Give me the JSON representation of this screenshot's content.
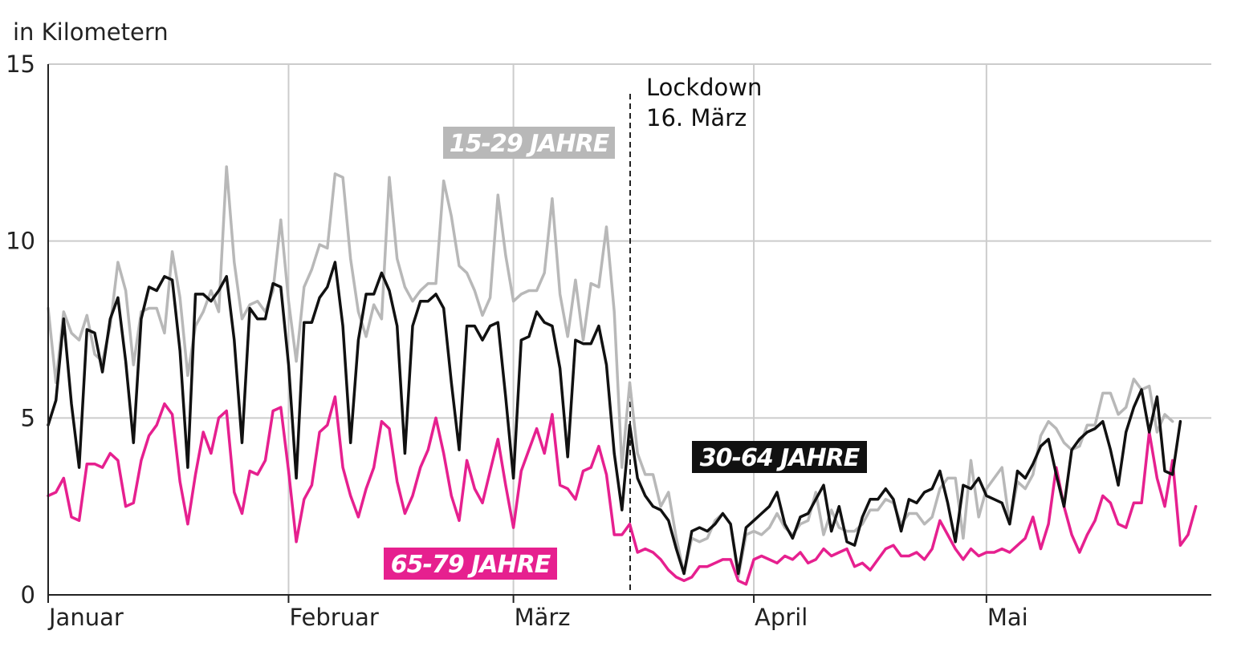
{
  "chart_data": {
    "type": "line",
    "title": "",
    "ylabel": "in Kilometern",
    "ylim": [
      0,
      15
    ],
    "yticks": [
      "0",
      "5",
      "10",
      "15"
    ],
    "x_range_days": [
      1,
      151
    ],
    "months": [
      {
        "label": "Januar",
        "day": 1
      },
      {
        "label": "Februar",
        "day": 32
      },
      {
        "label": "März",
        "day": 61
      },
      {
        "label": "April",
        "day": 92
      },
      {
        "label": "Mai",
        "day": 122
      }
    ],
    "grid": true,
    "annotation": {
      "day": 76,
      "line1": "Lockdown",
      "line2": "16. März"
    },
    "series": [
      {
        "name": "15-29 JAHRE",
        "color": "#b8b8b8",
        "values": [
          8.1,
          6.0,
          8.0,
          7.4,
          7.2,
          7.9,
          6.8,
          6.6,
          7.6,
          9.4,
          8.6,
          6.5,
          8.0,
          8.1,
          8.1,
          7.4,
          9.7,
          8.4,
          6.2,
          7.6,
          8.0,
          8.6,
          8.0,
          12.1,
          9.4,
          7.8,
          8.2,
          8.3,
          8.0,
          8.6,
          10.6,
          8.3,
          6.6,
          8.7,
          9.2,
          9.9,
          9.8,
          11.9,
          11.8,
          9.5,
          8.0,
          7.3,
          8.2,
          7.8,
          11.8,
          9.5,
          8.7,
          8.3,
          8.6,
          8.8,
          8.8,
          11.7,
          10.7,
          9.3,
          9.1,
          8.6,
          7.9,
          8.4,
          11.3,
          9.6,
          8.3,
          8.5,
          8.6,
          8.6,
          9.1,
          11.2,
          8.5,
          7.3,
          8.9,
          7.2,
          8.8,
          8.7,
          10.4,
          8.0,
          3.6,
          6.0,
          4.0,
          3.4,
          3.4,
          2.5,
          2.9,
          1.6,
          0.6,
          1.6,
          1.5,
          1.6,
          2.1,
          2.3,
          2.0,
          0.5,
          1.7,
          1.8,
          1.7,
          1.9,
          2.3,
          1.9,
          1.7,
          2.0,
          2.1,
          2.9,
          1.7,
          2.4,
          1.9,
          1.8,
          1.8,
          2.0,
          2.4,
          2.4,
          2.7,
          2.6,
          2.0,
          2.3,
          2.3,
          2.0,
          2.2,
          3.0,
          3.3,
          3.3,
          1.6,
          3.8,
          2.2,
          3.0,
          3.3,
          3.6,
          2.0,
          3.2,
          3.0,
          3.4,
          4.5,
          4.9,
          4.7,
          4.3,
          4.1,
          4.2,
          4.8,
          4.8,
          5.7,
          5.7,
          5.1,
          5.3,
          6.1,
          5.8,
          5.9,
          4.6,
          5.1,
          4.9
        ]
      },
      {
        "name": "30-64 JAHRE",
        "color": "#111111",
        "values": [
          4.8,
          5.5,
          7.8,
          5.4,
          3.6,
          7.5,
          7.4,
          6.3,
          7.8,
          8.4,
          6.6,
          4.3,
          7.8,
          8.7,
          8.6,
          9.0,
          8.9,
          6.9,
          3.6,
          8.5,
          8.5,
          8.3,
          8.6,
          9.0,
          7.2,
          4.3,
          8.1,
          7.8,
          7.8,
          8.8,
          8.7,
          6.5,
          3.3,
          7.7,
          7.7,
          8.4,
          8.7,
          9.4,
          7.6,
          4.3,
          7.2,
          8.5,
          8.5,
          9.1,
          8.6,
          7.6,
          4.0,
          7.6,
          8.3,
          8.3,
          8.5,
          8.1,
          6.0,
          4.1,
          7.6,
          7.6,
          7.2,
          7.6,
          7.7,
          5.6,
          3.3,
          7.2,
          7.3,
          8.0,
          7.7,
          7.6,
          6.4,
          3.9,
          7.2,
          7.1,
          7.1,
          7.6,
          6.5,
          4.0,
          2.4,
          4.8,
          3.3,
          2.8,
          2.5,
          2.4,
          2.1,
          1.3,
          0.6,
          1.8,
          1.9,
          1.8,
          2.0,
          2.3,
          2.0,
          0.6,
          1.9,
          2.1,
          2.3,
          2.5,
          2.9,
          2.0,
          1.6,
          2.2,
          2.3,
          2.7,
          3.1,
          1.8,
          2.5,
          1.5,
          1.4,
          2.2,
          2.7,
          2.7,
          3.0,
          2.7,
          1.8,
          2.7,
          2.6,
          2.9,
          3.0,
          3.5,
          2.6,
          1.5,
          3.1,
          3.0,
          3.3,
          2.8,
          2.7,
          2.6,
          2.0,
          3.5,
          3.3,
          3.7,
          4.2,
          4.4,
          3.4,
          2.5,
          4.1,
          4.4,
          4.6,
          4.7,
          4.9,
          4.1,
          3.1,
          4.6,
          5.3,
          5.8,
          4.6,
          5.6,
          3.5,
          3.4,
          4.9
        ]
      },
      {
        "name": "65-79 JAHRE",
        "color": "#e6208f",
        "values": [
          2.8,
          2.9,
          3.3,
          2.2,
          2.1,
          3.7,
          3.7,
          3.6,
          4.0,
          3.8,
          2.5,
          2.6,
          3.8,
          4.5,
          4.8,
          5.4,
          5.1,
          3.2,
          2.0,
          3.4,
          4.6,
          4.0,
          5.0,
          5.2,
          2.9,
          2.3,
          3.5,
          3.4,
          3.8,
          5.2,
          5.3,
          3.5,
          1.5,
          2.7,
          3.1,
          4.6,
          4.8,
          5.6,
          3.6,
          2.8,
          2.2,
          3.0,
          3.6,
          4.9,
          4.7,
          3.2,
          2.3,
          2.8,
          3.6,
          4.1,
          5.0,
          4.0,
          2.8,
          2.1,
          3.8,
          3.0,
          2.6,
          3.5,
          4.4,
          3.1,
          1.9,
          3.5,
          4.1,
          4.7,
          4.0,
          5.1,
          3.1,
          3.0,
          2.7,
          3.5,
          3.6,
          4.2,
          3.4,
          1.7,
          1.7,
          2.0,
          1.2,
          1.3,
          1.2,
          1.0,
          0.7,
          0.5,
          0.4,
          0.5,
          0.8,
          0.8,
          0.9,
          1.0,
          1.0,
          0.4,
          0.3,
          1.0,
          1.1,
          1.0,
          0.9,
          1.1,
          1.0,
          1.2,
          0.9,
          1.0,
          1.3,
          1.1,
          1.2,
          1.3,
          0.8,
          0.9,
          0.7,
          1.0,
          1.3,
          1.4,
          1.1,
          1.1,
          1.2,
          1.0,
          1.3,
          2.1,
          1.7,
          1.3,
          1.0,
          1.3,
          1.1,
          1.2,
          1.2,
          1.3,
          1.2,
          1.4,
          1.6,
          2.2,
          1.3,
          2.0,
          3.6,
          2.5,
          1.7,
          1.2,
          1.7,
          2.1,
          2.8,
          2.6,
          2.0,
          1.9,
          2.6,
          2.6,
          4.6,
          3.3,
          2.5,
          3.8,
          1.4,
          1.7,
          2.5
        ]
      }
    ]
  }
}
